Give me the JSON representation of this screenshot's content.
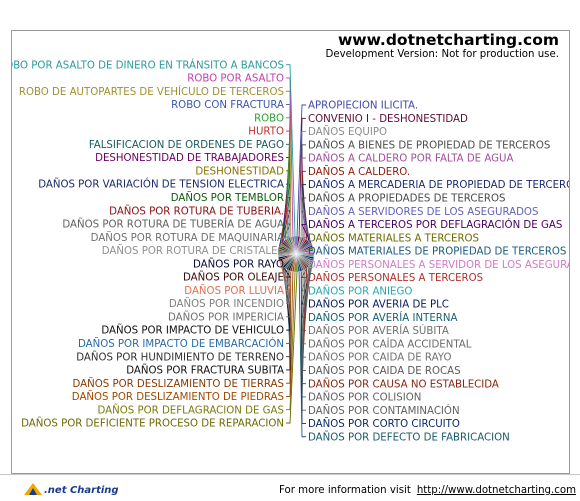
{
  "watermark": {
    "title": "www.dotnetcharting.com",
    "subtitle": "Development Version: Not for production use."
  },
  "footer": {
    "logo": ".net Charting",
    "info_label": "For more information visit",
    "info_url": "http://www.dotnetcharting.com"
  },
  "chart_data": {
    "type": "pie",
    "legend": "none",
    "slices": [
      {
        "label": "APROPIECION ILICITA.",
        "value": 1,
        "color": "#3f4aa7"
      },
      {
        "label": "CONVENIO I - DESHONESTIDAD",
        "value": 1,
        "color": "#5a0e36"
      },
      {
        "label": "DAÑOS EQUIPO",
        "value": 1,
        "color": "#8c8c8c"
      },
      {
        "label": "DAÑOS A BIENES DE PROPIEDAD DE TERCEROS",
        "value": 1,
        "color": "#4d4d4d"
      },
      {
        "label": "DAÑOS A CALDERO POR FALTA DE AGUA",
        "value": 1,
        "color": "#a0509a"
      },
      {
        "label": "DAÑOS A CALDERO.",
        "value": 1,
        "color": "#8a1f0f"
      },
      {
        "label": "DAÑOS A MERCADERIA DE PROPIEDAD DE TERCEROS",
        "value": 1,
        "color": "#1a2a6e"
      },
      {
        "label": "DAÑOS A PROPIEDADES DE TERCEROS",
        "value": 1,
        "color": "#4a4a4a"
      },
      {
        "label": "DAÑOS A SERVIDORES DE LOS ASEGURADOS",
        "value": 1,
        "color": "#6560b5"
      },
      {
        "label": "DAÑOS A TERCEROS POR DEFLAGRACIÓN DE GAS",
        "value": 1,
        "color": "#4a0060"
      },
      {
        "label": "DAÑOS MATERIALES A TERCEROS",
        "value": 1,
        "color": "#6b6b00"
      },
      {
        "label": "DAÑOS MATERIALES DE PROPIEDAD DE TERCEROS",
        "value": 1,
        "color": "#1c5a80"
      },
      {
        "label": "DAÑOS PERSONALES A SERVIDOR DE LOS ASEGURADOS",
        "value": 1,
        "color": "#d07ac8"
      },
      {
        "label": "DAÑOS PERSONALES A TERCEROS",
        "value": 1,
        "color": "#b0302a"
      },
      {
        "label": "DAÑOS POR ANIEGO",
        "value": 1,
        "color": "#28a8b0"
      },
      {
        "label": "DAÑOS POR AVERIA DE PLC",
        "value": 1,
        "color": "#0a1a60"
      },
      {
        "label": "DAÑOS POR AVERÍA INTERNA",
        "value": 1,
        "color": "#1a6070"
      },
      {
        "label": "DAÑOS POR AVERÍA SÚBITA",
        "value": 1,
        "color": "#707070"
      },
      {
        "label": "DAÑOS POR CAÍDA ACCIDENTAL",
        "value": 1,
        "color": "#6a6a6a"
      },
      {
        "label": "DAÑOS POR CAIDA DE RAYO",
        "value": 1,
        "color": "#707070"
      },
      {
        "label": "DAÑOS POR CAIDA DE ROCAS",
        "value": 1,
        "color": "#5a5a5a"
      },
      {
        "label": "DAÑOS POR CAUSA NO ESTABLECIDA",
        "value": 1,
        "color": "#8a2410"
      },
      {
        "label": "DAÑOS POR COLISION",
        "value": 1,
        "color": "#606060"
      },
      {
        "label": "DAÑOS POR CONTAMINACIÓN",
        "value": 1,
        "color": "#606060"
      },
      {
        "label": "DAÑOS POR CORTO CIRCUITO",
        "value": 1,
        "color": "#0a2a6a"
      },
      {
        "label": "DAÑOS POR DEFECTO DE FABRICACION",
        "value": 1,
        "color": "#1a5a6a"
      },
      {
        "label": "DAÑOS POR DEFICIENTE PROCESO DE REPARACION",
        "value": 1,
        "color": "#6a6a00"
      },
      {
        "label": "DAÑOS POR DEFLAGRACION DE GAS",
        "value": 1,
        "color": "#7a7a10"
      },
      {
        "label": "DAÑOS POR DESLIZAMIENTO DE PIEDRAS",
        "value": 1,
        "color": "#a04a00"
      },
      {
        "label": "DAÑOS POR DESLIZAMIENTO DE TIERRAS",
        "value": 1,
        "color": "#8a3a00"
      },
      {
        "label": "DAÑOS POR FRACTURA SUBITA",
        "value": 1,
        "color": "#101010"
      },
      {
        "label": "DAÑOS POR HUNDIMIENTO DE TERRENO",
        "value": 1,
        "color": "#303030"
      },
      {
        "label": "DAÑOS POR IMPACTO DE EMBARCACIÓN",
        "value": 1,
        "color": "#2a6aa8"
      },
      {
        "label": "DAÑOS POR IMPACTO DE VEHICULO",
        "value": 1,
        "color": "#101010"
      },
      {
        "label": "DAÑOS POR IMPERICIA",
        "value": 1,
        "color": "#707070"
      },
      {
        "label": "DAÑOS POR INCENDIO",
        "value": 1,
        "color": "#808080"
      },
      {
        "label": "DAÑOS POR LLUVIA",
        "value": 1,
        "color": "#e07050"
      },
      {
        "label": "DAÑOS POR OLEAJE",
        "value": 1,
        "color": "#3a0a0a"
      },
      {
        "label": "DAÑOS POR RAYO",
        "value": 1,
        "color": "#0a0a3a"
      },
      {
        "label": "DAÑOS POR ROTURA DE CRISTALES",
        "value": 1,
        "color": "#909090"
      },
      {
        "label": "DAÑOS POR ROTURA DE MAQUINARIA",
        "value": 1,
        "color": "#707070"
      },
      {
        "label": "DAÑOS POR ROTURA DE TUBERÍA DE AGUA",
        "value": 1,
        "color": "#606060"
      },
      {
        "label": "DAÑOS POR ROTURA DE TUBERIA.",
        "value": 1,
        "color": "#8a1010"
      },
      {
        "label": "DAÑOS POR TEMBLOR",
        "value": 1,
        "color": "#0a5a0a"
      },
      {
        "label": "DAÑOS POR VARIACIÓN DE TENSION ELECTRICA",
        "value": 1,
        "color": "#1a2a6a"
      },
      {
        "label": "DESHONESTIDAD",
        "value": 1,
        "color": "#8a7000"
      },
      {
        "label": "DESHONESTIDAD DE TRABAJADORES",
        "value": 1,
        "color": "#6a0060"
      },
      {
        "label": "FALSIFICACION DE ORDENES DE PAGO",
        "value": 1,
        "color": "#1a5a5a"
      },
      {
        "label": "HURTO",
        "value": 1,
        "color": "#c03030"
      },
      {
        "label": "ROBO",
        "value": 1,
        "color": "#30a030"
      },
      {
        "label": "ROBO CON FRACTURA",
        "value": 1,
        "color": "#3a58b0"
      },
      {
        "label": "ROBO DE AUTOPARTES DE VEHÍCULO DE TERCEROS",
        "value": 1,
        "color": "#a09030"
      },
      {
        "label": "ROBO POR ASALTO",
        "value": 1,
        "color": "#c040b0"
      },
      {
        "label": "ROBO POR ASALTO DE DINERO EN TRÁNSITO A BANCOS",
        "value": 1,
        "color": "#2a9a9a"
      }
    ]
  }
}
